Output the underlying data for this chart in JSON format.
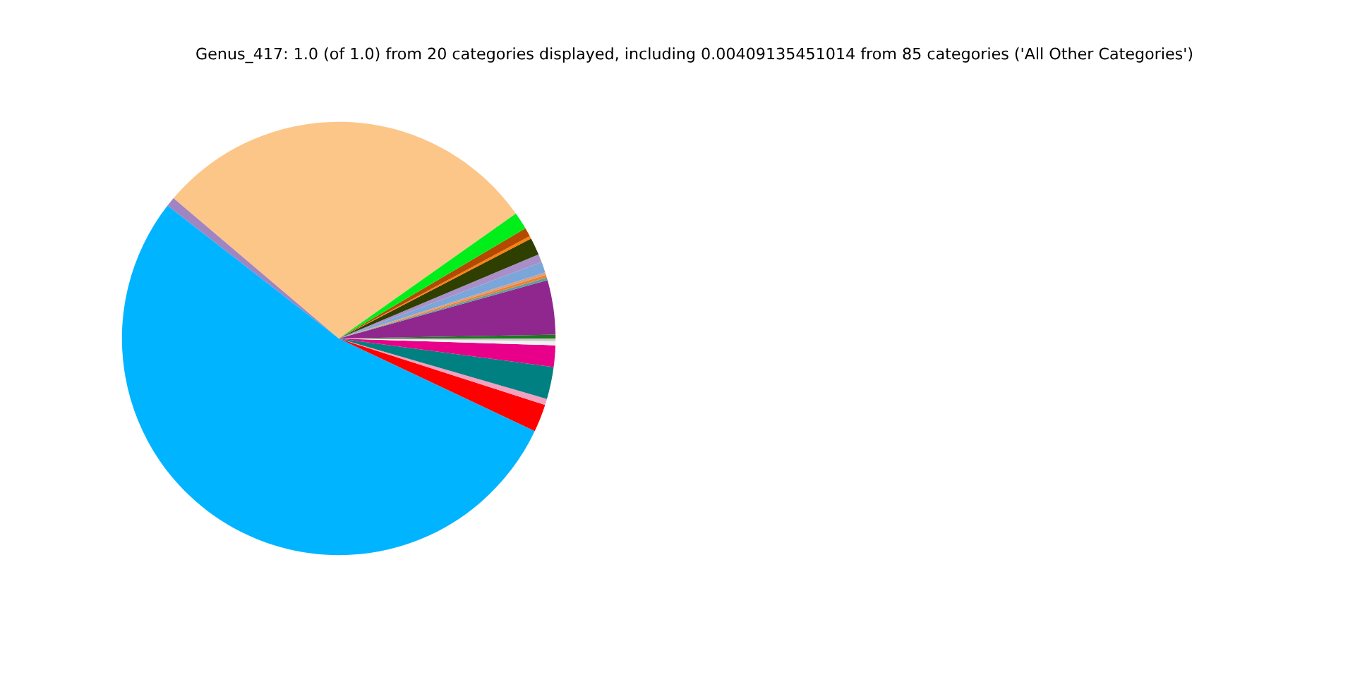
{
  "chart_data": {
    "type": "pie",
    "title": "Genus_417: 1.0 (of 1.0) from 20 categories displayed, including 0.00409135451014 from 85 categories ('All Other Categories')",
    "categories": [
      null,
      null,
      null,
      null,
      null,
      null,
      null,
      null,
      null,
      null,
      null,
      null,
      null,
      null,
      null,
      null,
      null,
      null,
      null,
      null
    ],
    "values": [
      0.28,
      4.06,
      0.2,
      0.2,
      0.2,
      0.8,
      0.6,
      1.3,
      0.2,
      0.65,
      1.3,
      29.0,
      0.7,
      53.48,
      2.07,
      0.46,
      2.4,
      1.6,
      0.3,
      0.2
    ],
    "colors": [
      "#1a7a1a",
      "#90278e",
      "#5f9ea0",
      "#f08030",
      "#d8a080",
      "#7aa6da",
      "#a98fc8",
      "#2f3f00",
      "#ff7f0e",
      "#b34a00",
      "#00ee1a",
      "#fcc688",
      "#a085c0",
      "#00b4ff",
      "#ff0000",
      "#f4a0c0",
      "#008080",
      "#e8008a",
      "#f0f0f0",
      "#c8c8c8"
    ]
  }
}
